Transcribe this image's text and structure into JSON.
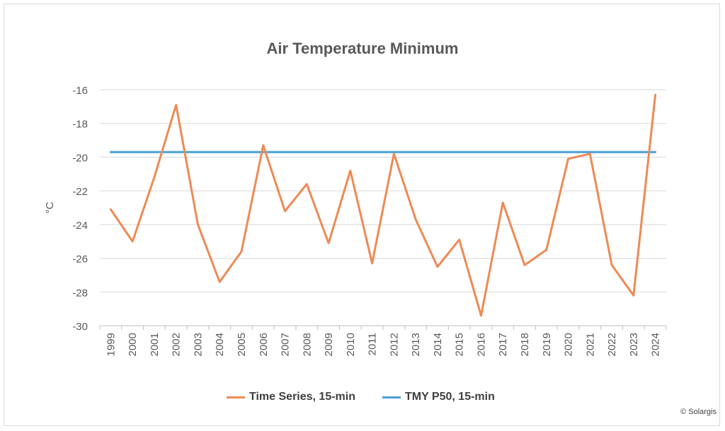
{
  "chart_data": {
    "type": "line",
    "title": "Air Temperature Minimum",
    "ylabel": "°C",
    "xlabel": "",
    "ylim": [
      -30,
      -16
    ],
    "yticks": [
      -16,
      -18,
      -20,
      -22,
      -24,
      -26,
      -28,
      -30
    ],
    "grid": true,
    "legend_position": "bottom",
    "categories": [
      "1999",
      "2000",
      "2001",
      "2002",
      "2003",
      "2004",
      "2005",
      "2006",
      "2007",
      "2008",
      "2009",
      "2010",
      "2011",
      "2012",
      "2013",
      "2014",
      "2015",
      "2016",
      "2017",
      "2018",
      "2019",
      "2020",
      "2021",
      "2022",
      "2023",
      "2024"
    ],
    "series": [
      {
        "name": "Time Series, 15-min",
        "color": "#ed8a55",
        "values": [
          -23.1,
          -25.0,
          -21.2,
          -16.9,
          -24.0,
          -27.4,
          -25.6,
          -19.3,
          -23.2,
          -21.6,
          -25.1,
          -20.8,
          -26.3,
          -19.8,
          -23.7,
          -26.5,
          -24.9,
          -29.4,
          -22.7,
          -26.4,
          -25.5,
          -20.1,
          -19.8,
          -26.4,
          -28.2,
          -16.3
        ]
      },
      {
        "name": "TMY P50, 15-min",
        "color": "#4a9fd4",
        "values": [
          -19.7,
          -19.7,
          -19.7,
          -19.7,
          -19.7,
          -19.7,
          -19.7,
          -19.7,
          -19.7,
          -19.7,
          -19.7,
          -19.7,
          -19.7,
          -19.7,
          -19.7,
          -19.7,
          -19.7,
          -19.7,
          -19.7,
          -19.7,
          -19.7,
          -19.7,
          -19.7,
          -19.7,
          -19.7,
          -19.7
        ]
      }
    ]
  },
  "copyright": "© Solargis"
}
